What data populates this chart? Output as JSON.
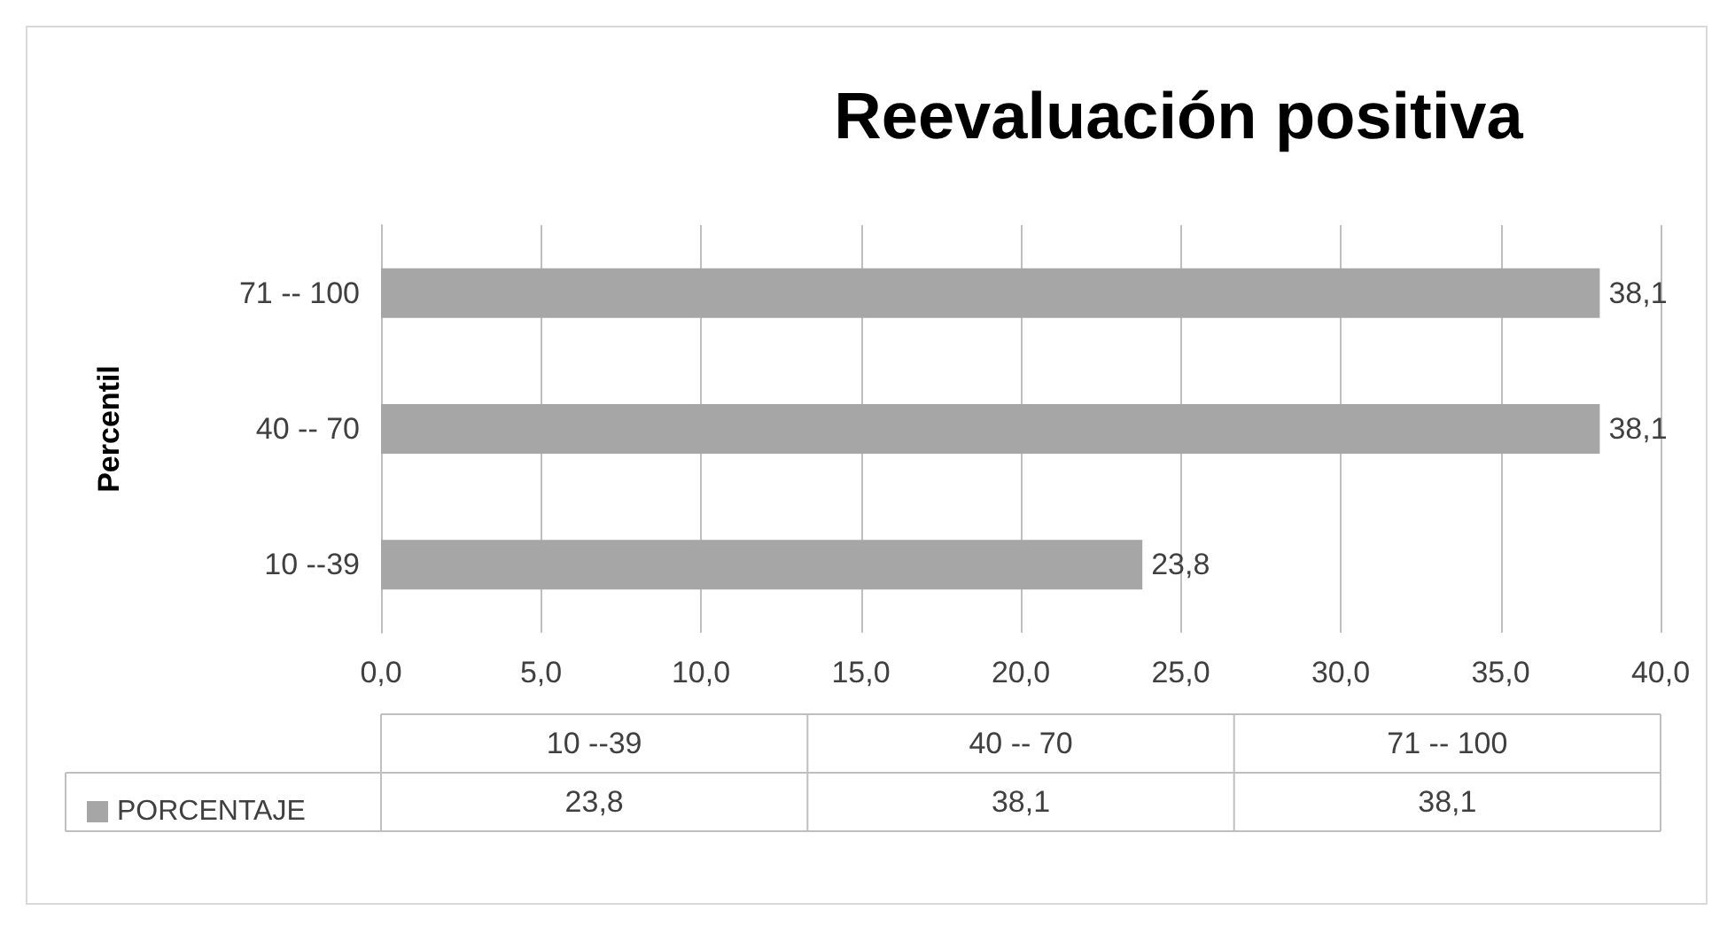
{
  "chart_data": {
    "type": "bar",
    "orientation": "horizontal",
    "title": "Reevaluación positiva",
    "ylabel": "Percentil",
    "categories": [
      "71 -- 100",
      "40 -- 70",
      "10 --39"
    ],
    "series": [
      {
        "name": "PORCENTAJE",
        "color": "#a6a6a6",
        "values": [
          38.1,
          38.1,
          23.8
        ],
        "value_labels": [
          "38,1",
          "38,1",
          "23,8"
        ]
      }
    ],
    "xlim": [
      0,
      40
    ],
    "xticks": [
      {
        "value": 0,
        "label": "0,0"
      },
      {
        "value": 5,
        "label": "5,0"
      },
      {
        "value": 10,
        "label": "10,0"
      },
      {
        "value": 15,
        "label": "15,0"
      },
      {
        "value": 20,
        "label": "20,0"
      },
      {
        "value": 25,
        "label": "25,0"
      },
      {
        "value": 30,
        "label": "30,0"
      },
      {
        "value": 35,
        "label": "35,0"
      },
      {
        "value": 40,
        "label": "40,0"
      }
    ],
    "grid": "x",
    "legend": "bottom left"
  }
}
